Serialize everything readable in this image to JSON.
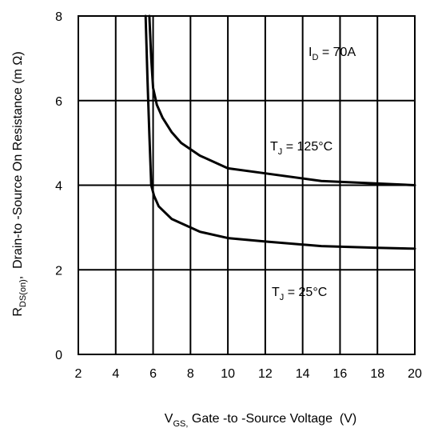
{
  "chart_data": {
    "type": "line",
    "xlabel": {
      "main": "V",
      "sub": "GS,",
      "rest": " Gate -to -Source Voltage  (V)"
    },
    "ylabel": {
      "main": "R",
      "sub": "DS(on)",
      "rest": ",  Drain-to -Source On Resistance (m Ω)"
    },
    "xlim": [
      2,
      20
    ],
    "ylim": [
      0,
      8
    ],
    "xticks": [
      "2",
      "4",
      "6",
      "8",
      "10",
      "12",
      "14",
      "16",
      "18",
      "20"
    ],
    "yticks": [
      "0",
      "2",
      "4",
      "6",
      "8"
    ],
    "grid": true,
    "series": [
      {
        "name": "TJ = 125°C",
        "label": {
          "main": "T",
          "sub": "J",
          "rest": " = 125°C"
        },
        "points": [
          [
            5.8,
            8.0
          ],
          [
            5.9,
            7.0
          ],
          [
            6.0,
            6.3
          ],
          [
            6.2,
            5.9
          ],
          [
            6.5,
            5.6
          ],
          [
            7.0,
            5.25
          ],
          [
            7.5,
            5.0
          ],
          [
            8.5,
            4.7
          ],
          [
            10,
            4.4
          ],
          [
            12,
            4.28
          ],
          [
            15,
            4.1
          ],
          [
            18,
            4.04
          ],
          [
            20,
            4.0
          ]
        ],
        "color": "#000000"
      },
      {
        "name": "TJ = 25°C",
        "label": {
          "main": "T",
          "sub": "J",
          "rest": " = 25°C"
        },
        "points": [
          [
            5.6,
            8.0
          ],
          [
            5.7,
            6.5
          ],
          [
            5.8,
            5.2
          ],
          [
            5.9,
            4.0
          ],
          [
            6.05,
            3.75
          ],
          [
            6.3,
            3.5
          ],
          [
            7.0,
            3.2
          ],
          [
            8.5,
            2.9
          ],
          [
            10,
            2.75
          ],
          [
            12,
            2.67
          ],
          [
            15,
            2.56
          ],
          [
            18,
            2.52
          ],
          [
            20,
            2.5
          ]
        ],
        "color": "#000000"
      }
    ],
    "annotations": [
      {
        "main": "I",
        "sub": "D",
        "rest": " = 70A"
      }
    ]
  }
}
